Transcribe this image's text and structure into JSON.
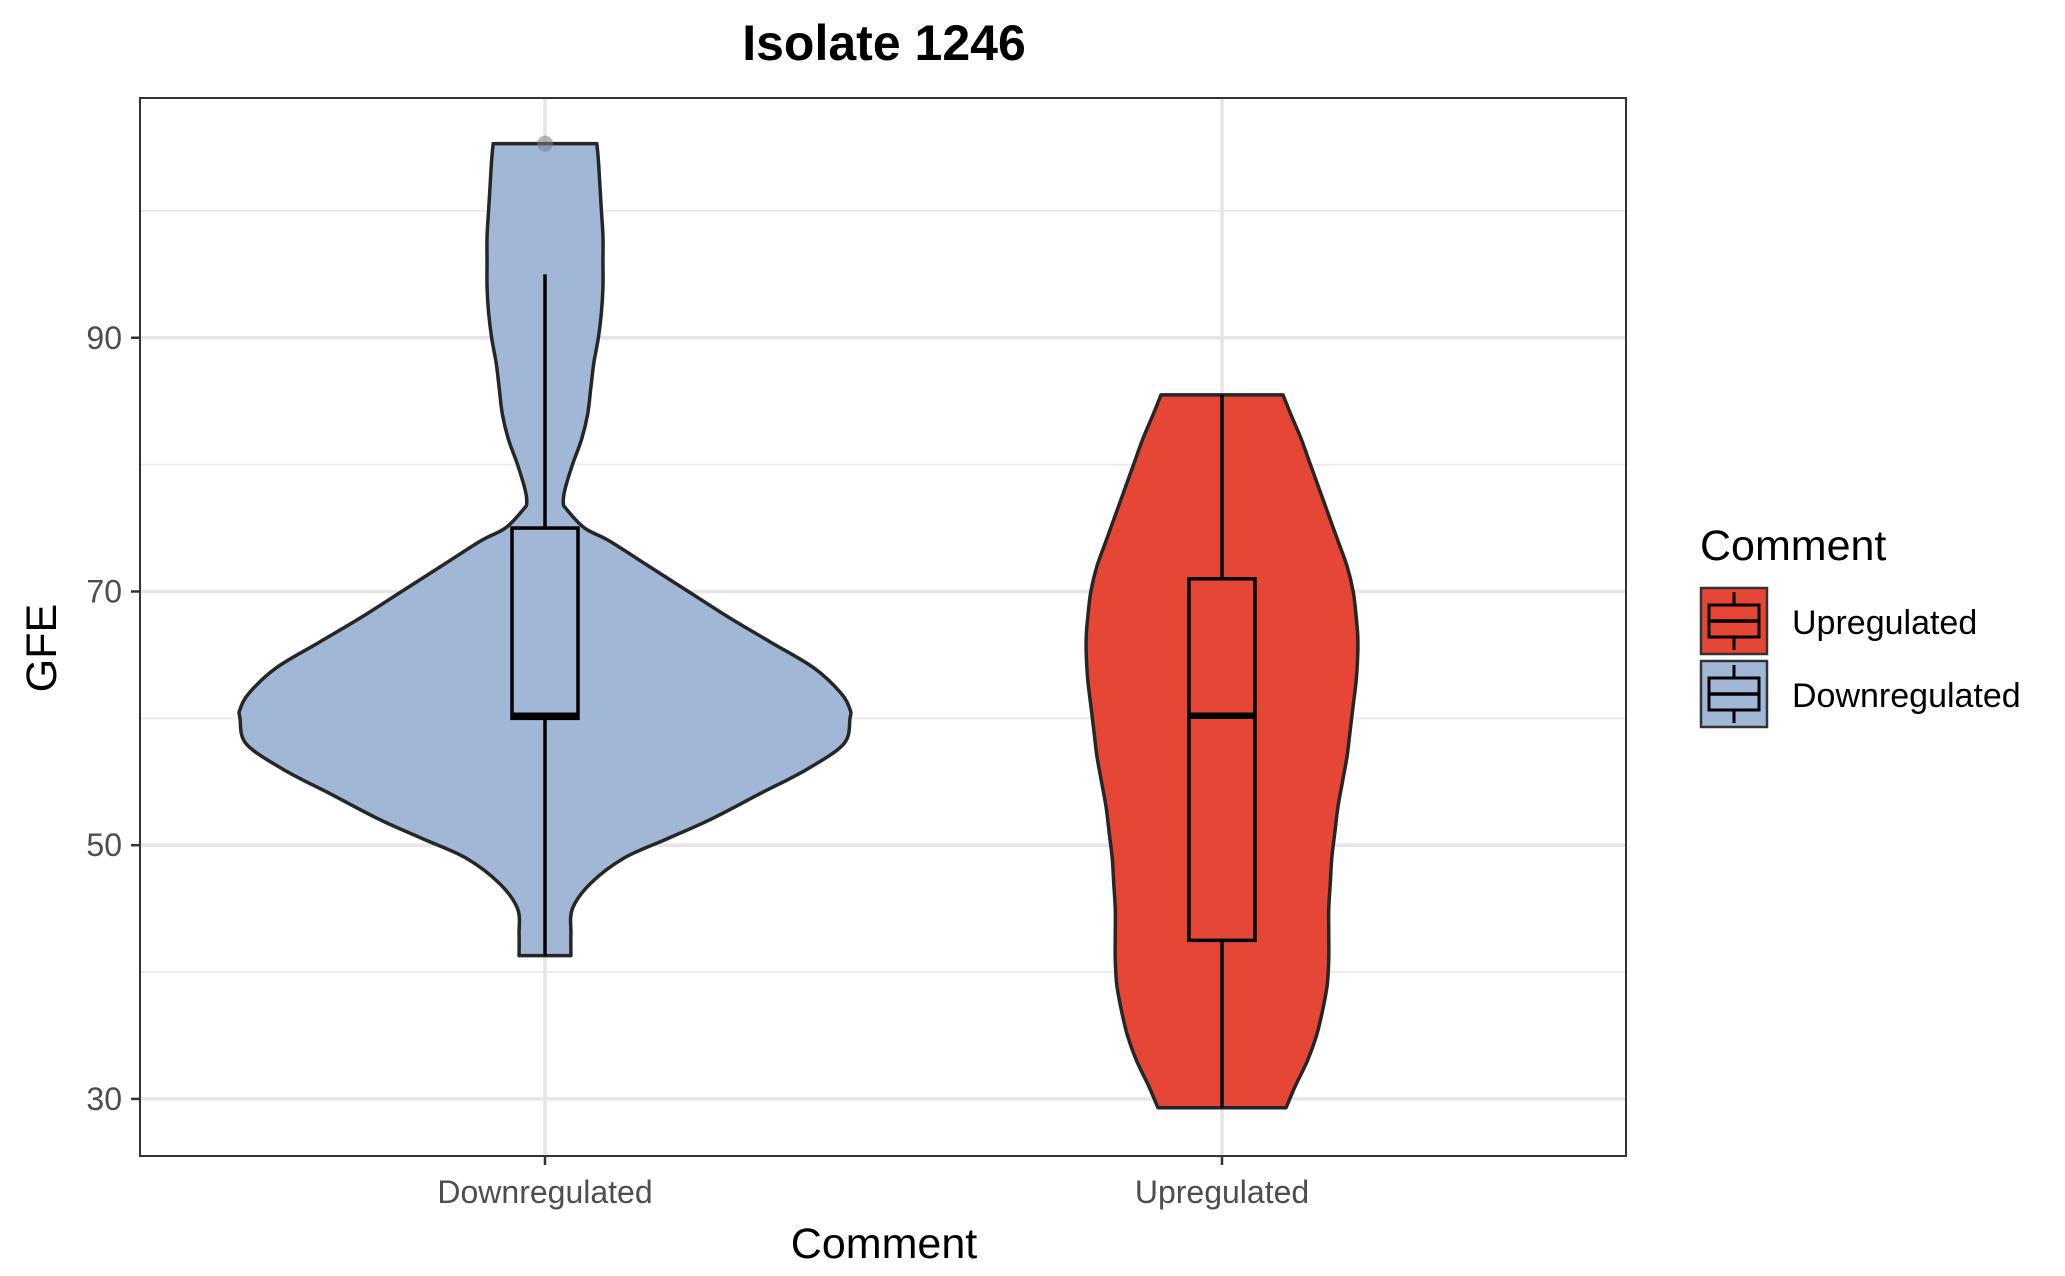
{
  "chart_data": {
    "type": "violin",
    "title": "Isolate 1246",
    "xlabel": "Comment",
    "ylabel": "GFE",
    "categories": [
      "Downregulated",
      "Upregulated"
    ],
    "yticks": [
      30,
      50,
      70,
      90
    ],
    "ylim": [
      25.5,
      108.9
    ],
    "grid": true,
    "legend": {
      "title": "Comment",
      "position": "right",
      "entries": [
        {
          "label": "Upregulated",
          "color": "#E64636"
        },
        {
          "label": "Downregulated",
          "color": "#A0B7D6"
        }
      ]
    },
    "series": [
      {
        "category": "Downregulated",
        "color": "#A0B7D6",
        "box": {
          "min": 41.3,
          "q1": 60.0,
          "median": 60.2,
          "q3": 75.0,
          "max": 95.0
        },
        "outliers": [
          105.3
        ],
        "violin": {
          "y": [
            41.3,
            43,
            45,
            47,
            49,
            50.5,
            52,
            54,
            56,
            58,
            60,
            60.7,
            62,
            64,
            66,
            68,
            70,
            72,
            74,
            75,
            76.5,
            77,
            78,
            80,
            82,
            84,
            86,
            88,
            90,
            92,
            94,
            96,
            98,
            100,
            102,
            104,
            105.3
          ],
          "half_width": [
            0.085,
            0.085,
            0.09,
            0.15,
            0.26,
            0.4,
            0.54,
            0.7,
            0.86,
            0.98,
            1.0,
            1.0,
            0.97,
            0.88,
            0.74,
            0.6,
            0.47,
            0.34,
            0.21,
            0.13,
            0.07,
            0.06,
            0.065,
            0.09,
            0.12,
            0.14,
            0.15,
            0.16,
            0.175,
            0.185,
            0.19,
            0.19,
            0.19,
            0.185,
            0.18,
            0.175,
            0.17
          ]
        }
      },
      {
        "category": "Upregulated",
        "color": "#E64636",
        "box": {
          "min": 29.3,
          "q1": 42.5,
          "median": 60.2,
          "q3": 71.0,
          "max": 85.5
        },
        "outliers": [],
        "violin": {
          "y": [
            29.3,
            31,
            33,
            35,
            37,
            39,
            41,
            43,
            45,
            47,
            49,
            51,
            53,
            55,
            57,
            59,
            61,
            63,
            65,
            66.5,
            68,
            70,
            72,
            74,
            76,
            78,
            80,
            82,
            84,
            85.5
          ],
          "half_width": [
            0.21,
            0.24,
            0.28,
            0.31,
            0.33,
            0.345,
            0.35,
            0.35,
            0.35,
            0.355,
            0.36,
            0.37,
            0.38,
            0.395,
            0.41,
            0.42,
            0.43,
            0.44,
            0.445,
            0.445,
            0.44,
            0.43,
            0.41,
            0.38,
            0.35,
            0.32,
            0.29,
            0.26,
            0.225,
            0.2
          ]
        }
      }
    ]
  }
}
